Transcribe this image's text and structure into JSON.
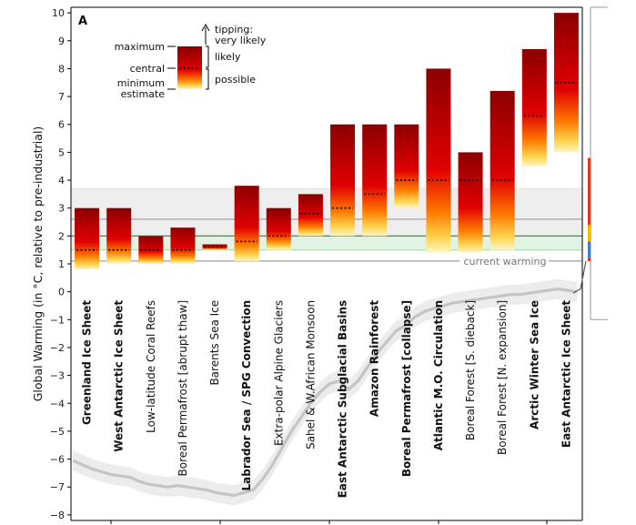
{
  "panel_letter": "A",
  "chart_data": {
    "type": "bar",
    "ylabel": "Global Warming (in °C, relative to pre-industrial)",
    "ylim": [
      -8.2,
      10.2
    ],
    "yticks": [
      -8,
      -7,
      -6,
      -5,
      -4,
      -3,
      -2,
      -1,
      0,
      1,
      2,
      3,
      4,
      5,
      6,
      7,
      8,
      9,
      10
    ],
    "grid": false,
    "legend_placement": "top-left",
    "colors": {
      "top": "#8b0000",
      "mid": "#e00000",
      "orange": "#ff8c00",
      "low": "#fff6c8",
      "central_marker": "#000000"
    },
    "elements": [
      {
        "name": "Greenland Ice Sheet",
        "bold": true,
        "min": 0.8,
        "central": 1.5,
        "max": 3.0
      },
      {
        "name": "West Antarctic Ice Sheet",
        "bold": true,
        "min": 1.0,
        "central": 1.5,
        "max": 3.0
      },
      {
        "name": "Low-latitude Coral Reefs",
        "bold": false,
        "min": 1.0,
        "central": 1.5,
        "max": 2.0
      },
      {
        "name": "Boreal Permafrost [abrupt thaw]",
        "bold": false,
        "min": 1.0,
        "central": 1.5,
        "max": 2.3
      },
      {
        "name": "Barents Sea Ice",
        "bold": false,
        "min": 1.5,
        "central": 1.6,
        "max": 1.7
      },
      {
        "name": "Labrador Sea / SPG Convection",
        "bold": true,
        "min": 1.1,
        "central": 1.8,
        "max": 3.8
      },
      {
        "name": "Extra-polar Alpine Glaciers",
        "bold": false,
        "min": 1.5,
        "central": 2.0,
        "max": 3.0
      },
      {
        "name": "Sahel & W.African Monsoon",
        "bold": false,
        "min": 2.0,
        "central": 2.8,
        "max": 3.5
      },
      {
        "name": "East Antarctic Subglacial Basins",
        "bold": true,
        "min": 2.0,
        "central": 3.0,
        "max": 6.0
      },
      {
        "name": "Amazon Rainforest",
        "bold": true,
        "min": 2.0,
        "central": 3.5,
        "max": 6.0
      },
      {
        "name": "Boreal Permafrost [collapse]",
        "bold": true,
        "min": 3.0,
        "central": 4.0,
        "max": 6.0
      },
      {
        "name": "Atlantic M.O. Circulation",
        "bold": true,
        "min": 1.4,
        "central": 4.0,
        "max": 8.0
      },
      {
        "name": "Boreal Forest [S. dieback]",
        "bold": false,
        "min": 1.4,
        "central": 4.0,
        "max": 5.0
      },
      {
        "name": "Boreal Forest [N. expansion]",
        "bold": false,
        "min": 1.5,
        "central": 4.0,
        "max": 7.2
      },
      {
        "name": "Arctic Winter Sea Ice",
        "bold": true,
        "min": 4.5,
        "central": 6.3,
        "max": 8.7
      },
      {
        "name": "East Antarctic Ice Sheet",
        "bold": true,
        "min": 5.0,
        "central": 7.5,
        "max": 10.0
      }
    ],
    "reference_lines": [
      {
        "value": 1.5,
        "color": "#a8d8a8"
      },
      {
        "value": 2.0,
        "color": "#2ca02c"
      },
      {
        "value": 2.6,
        "color": "#999999"
      },
      {
        "value": 3.7,
        "color": "#e6e6e6"
      },
      {
        "value": 1.1,
        "label": "current warming",
        "color": "#888888"
      }
    ],
    "shaded_bands": [
      {
        "from": 1.5,
        "to": 2.0,
        "color": "#e3f3e3"
      },
      {
        "from": 2.0,
        "to": 3.7,
        "color": "#eeeeee"
      }
    ],
    "legend": {
      "maximum": "maximum",
      "central": "central",
      "minimum": "minimum\nestimate",
      "likely": "likely",
      "possible": "possible",
      "tipping": "tipping:\nvery likely"
    },
    "temperature_history": [
      -6.05,
      -6.2,
      -6.35,
      -6.45,
      -6.55,
      -6.6,
      -6.65,
      -6.8,
      -6.9,
      -6.95,
      -7.0,
      -6.95,
      -7.0,
      -7.05,
      -7.1,
      -7.2,
      -7.25,
      -7.3,
      -7.2,
      -7.1,
      -6.7,
      -6.2,
      -5.6,
      -5.0,
      -4.5,
      -4.0,
      -3.6,
      -3.3,
      -3.2,
      -3.5,
      -3.2,
      -2.7,
      -2.2,
      -1.8,
      -1.4,
      -1.2,
      -0.9,
      -0.7,
      -0.6,
      -0.5,
      -0.4,
      -0.35,
      -0.3,
      -0.25,
      -0.2,
      -0.15,
      -0.1,
      -0.1,
      -0.05,
      0.0,
      0.05,
      0.1,
      0.05,
      0.0
    ]
  }
}
